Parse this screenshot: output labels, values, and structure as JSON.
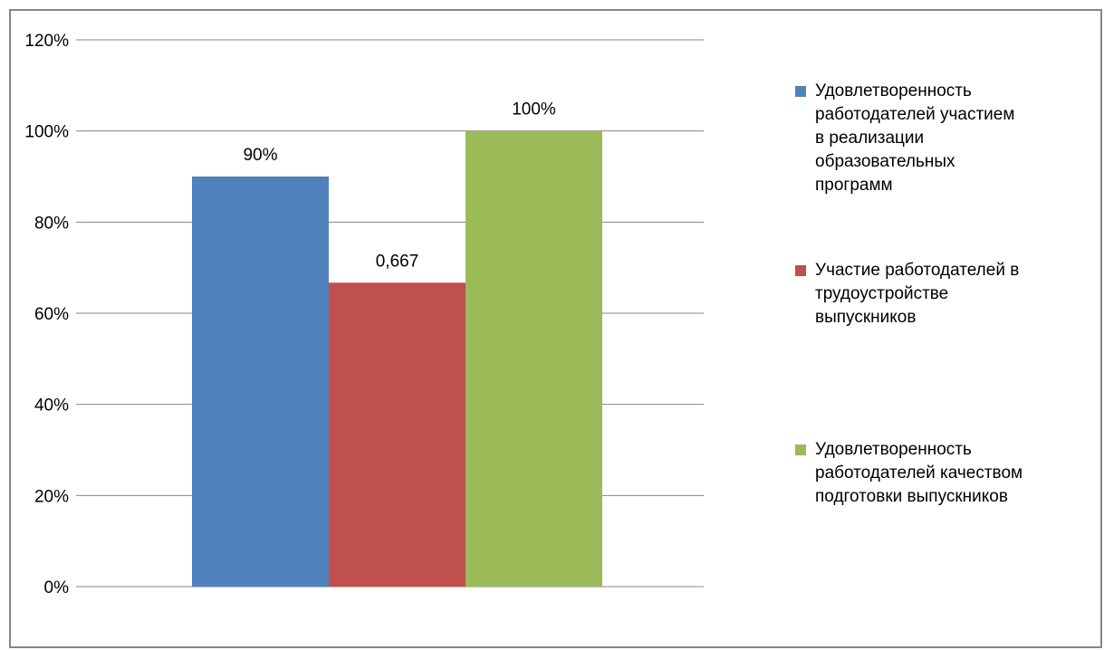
{
  "chart_data": {
    "type": "bar",
    "title": "",
    "xlabel": "",
    "ylabel": "",
    "ylim": [
      0,
      1.2
    ],
    "yticks": [
      "0%",
      "20%",
      "40%",
      "60%",
      "80%",
      "100%",
      "120%"
    ],
    "grid": true,
    "legend_position": "right",
    "series": [
      {
        "name": "Удовлетворенность\nработодателей участием\nв реализации\nобразовательных\nпрограмм",
        "value": 0.9,
        "label": "90%",
        "color": "#4F81BD"
      },
      {
        "name": "Участие работодателей в\nтрудоустройстве\nвыпускников",
        "value": 0.667,
        "label": "0,667",
        "color": "#C0504D"
      },
      {
        "name": "Удовлетворенность\nработодателей качеством\nподготовки выпускников",
        "value": 1.0,
        "label": "100%",
        "color": "#9BBB59"
      }
    ]
  }
}
